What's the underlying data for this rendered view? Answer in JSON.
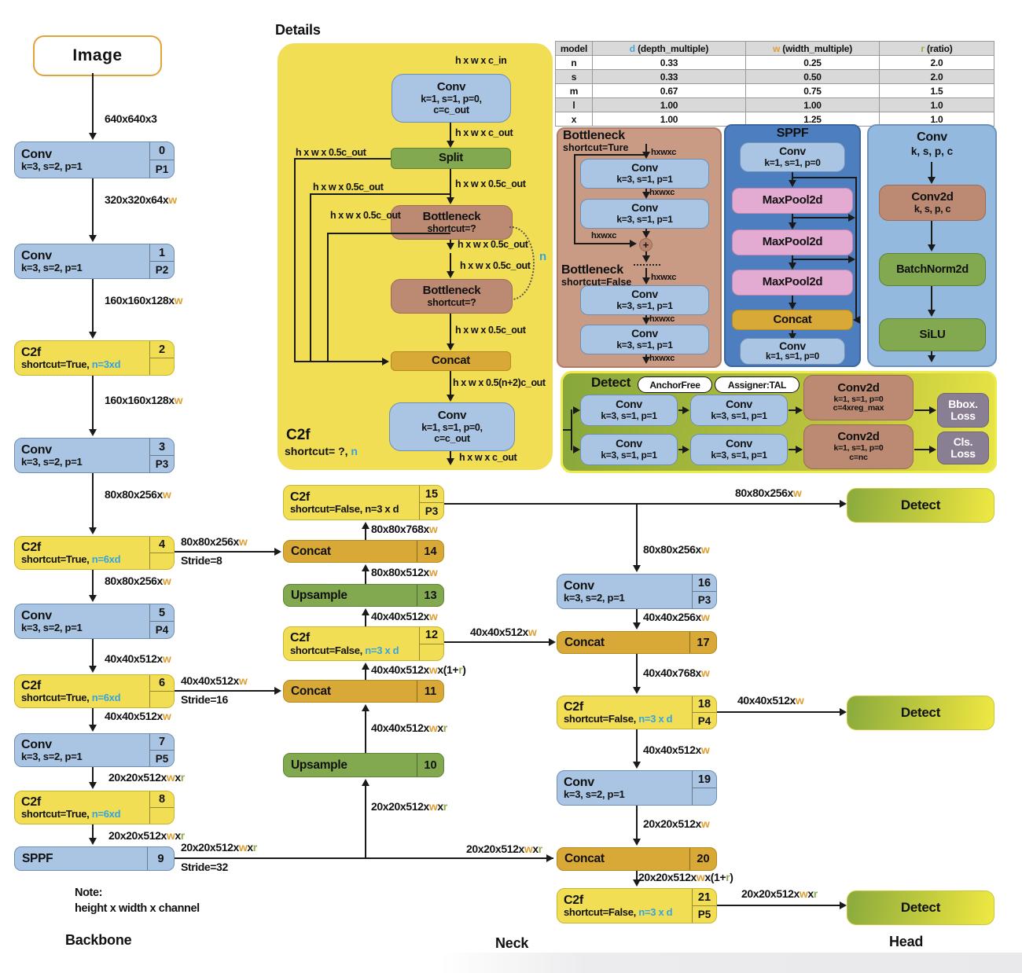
{
  "titles": {
    "details": "Details",
    "backbone": "Backbone",
    "neck": "Neck",
    "head": "Head",
    "image": "Image",
    "note_title": "Note:",
    "note_body": "height x width x channel"
  },
  "table": {
    "headers": {
      "model": "model",
      "d": [
        [
          "d",
          "d"
        ],
        [
          " (depth_multiple)"
        ]
      ],
      "w": [
        [
          "w",
          "w"
        ],
        [
          " (width_multiple)"
        ]
      ],
      "r": [
        [
          "r",
          "r"
        ],
        [
          " (ratio)"
        ]
      ]
    },
    "rows": [
      {
        "model": "n",
        "d": "0.33",
        "w": "0.25",
        "r": "2.0"
      },
      {
        "model": "s",
        "d": "0.33",
        "w": "0.50",
        "r": "2.0"
      },
      {
        "model": "m",
        "d": "0.67",
        "w": "0.75",
        "r": "1.5"
      },
      {
        "model": "l",
        "d": "1.00",
        "w": "1.00",
        "r": "1.0"
      },
      {
        "model": "x",
        "d": "1.00",
        "w": "1.25",
        "r": "1.0"
      }
    ]
  },
  "backbone": {
    "nodes": [
      {
        "title": "Conv",
        "sub": [
          [
            "k=3, s=2, p=1"
          ]
        ],
        "num": "0",
        "tag": "P1"
      },
      {
        "title": "Conv",
        "sub": [
          [
            "k=3, s=2, p=1"
          ]
        ],
        "num": "1",
        "tag": "P2"
      },
      {
        "title": "C2f",
        "sub": [
          [
            "shortcut=True, "
          ],
          [
            "n=3xd",
            "n"
          ]
        ],
        "num": "2",
        "tag": ""
      },
      {
        "title": "Conv",
        "sub": [
          [
            "k=3, s=2, p=1"
          ]
        ],
        "num": "3",
        "tag": "P3"
      },
      {
        "title": "C2f",
        "sub": [
          [
            "shortcut=True, "
          ],
          [
            "n=6xd",
            "n"
          ]
        ],
        "num": "4",
        "tag": ""
      },
      {
        "title": "Conv",
        "sub": [
          [
            "k=3, s=2, p=1"
          ]
        ],
        "num": "5",
        "tag": "P4"
      },
      {
        "title": "C2f",
        "sub": [
          [
            "shortcut=True, "
          ],
          [
            "n=6xd",
            "n"
          ]
        ],
        "num": "6",
        "tag": ""
      },
      {
        "title": "Conv",
        "sub": [
          [
            "k=3, s=2, p=1"
          ]
        ],
        "num": "7",
        "tag": "P5"
      },
      {
        "title": "C2f",
        "sub": [
          [
            "shortcut=True, "
          ],
          [
            "n=6xd",
            "n"
          ]
        ],
        "num": "8",
        "tag": ""
      },
      {
        "title": "SPPF",
        "num": "9"
      }
    ],
    "flows": [
      [
        [
          "640x640x3"
        ]
      ],
      [
        [
          "320x320x64x"
        ],
        [
          "w",
          "w"
        ]
      ],
      [
        [
          "160x160x128x"
        ],
        [
          "w",
          "w"
        ]
      ],
      [
        [
          "160x160x128x"
        ],
        [
          "w",
          "w"
        ]
      ],
      [
        [
          "80x80x256x"
        ],
        [
          "w",
          "w"
        ]
      ],
      [
        [
          "80x80x256x"
        ],
        [
          "w",
          "w"
        ]
      ],
      [
        [
          "40x40x512x"
        ],
        [
          "w",
          "w"
        ]
      ],
      [
        [
          "40x40x512x"
        ],
        [
          "w",
          "w"
        ]
      ],
      [
        [
          "20x20x512x"
        ],
        [
          "w",
          "w"
        ],
        [
          "x"
        ],
        [
          "r",
          "r"
        ]
      ],
      [
        [
          "20x20x512x"
        ],
        [
          "w",
          "w"
        ],
        [
          "x"
        ],
        [
          "r",
          "r"
        ]
      ]
    ],
    "strides": [
      {
        "dim": [
          [
            "80x80x256x"
          ],
          [
            "w",
            "w"
          ]
        ],
        "stride": "Stride=8"
      },
      {
        "dim": [
          [
            "40x40x512x"
          ],
          [
            "w",
            "w"
          ]
        ],
        "stride": "Stride=16"
      },
      {
        "dim": [
          [
            "20x20x512x"
          ],
          [
            "w",
            "w"
          ],
          [
            "x"
          ],
          [
            "r",
            "r"
          ]
        ],
        "stride": "Stride=32"
      }
    ]
  },
  "details": {
    "c2f_title": "C2f",
    "c2f_sub": [
      [
        "shortcut= ?, "
      ],
      [
        "n",
        "n"
      ]
    ],
    "n_label": "n",
    "conv_top": {
      "title": "Conv",
      "l1": "k=1, s=1, p=0,",
      "l2": "c=c_out"
    },
    "split": "Split",
    "bottleneck1": {
      "title": "Bottleneck",
      "sub": "shortcut=?"
    },
    "bottleneck2": {
      "title": "Bottleneck",
      "sub": "shortcut=?"
    },
    "concat": "Concat",
    "conv_bottom": {
      "title": "Conv",
      "l1": "k=1, s=1, p=0,",
      "l2": "c=c_out"
    },
    "labels": {
      "in": "h x w x c_in",
      "out_conv": "h x w x c_out",
      "half_a": "h x w x 0.5c_out",
      "half_b": "h x w x 0.5c_out",
      "half_c": "h x w x 0.5c_out",
      "half_d": "h x w x 0.5c_out",
      "half_e": "h x w x 0.5c_out",
      "half_f": "h x w x 0.5c_out",
      "half_g": "h x w x 0.5c_out",
      "concat_out": "h x w x 0.5(n+2)c_out",
      "final": "h x w x c_out"
    }
  },
  "bottleneck_panel": {
    "t1": "Bottleneck",
    "s1": "shortcut=Ture",
    "t2": "Bottleneck",
    "s2": "shortcut=False",
    "conv": {
      "title": "Conv",
      "sub": "k=3, s=1, p=1"
    },
    "hxwxc": "hxwxc",
    "plus": "+"
  },
  "sppf_panel": {
    "title": "SPPF",
    "conv1": {
      "title": "Conv",
      "sub": "k=1, s=1, p=0"
    },
    "mp": "MaxPool2d",
    "concat": "Concat",
    "conv2": {
      "title": "Conv",
      "sub": "k=1, s=1, p=0"
    }
  },
  "conv_panel": {
    "title": "Conv",
    "sub": "k, s, p, c",
    "conv2d": {
      "title": "Conv2d",
      "sub": "k, s, p, c"
    },
    "bn": "BatchNorm2d",
    "act": "SiLU"
  },
  "detect_panel": {
    "title": "Detect",
    "badge1": "AnchorFree",
    "badge2": "Assigner:TAL",
    "conv": {
      "title": "Conv",
      "sub": "k=3, s=1, p=1"
    },
    "conv2d_top": {
      "title": "Conv2d",
      "l1": "k=1, s=1, p=0",
      "l2": "c=4xreg_max"
    },
    "conv2d_bot": {
      "title": "Conv2d",
      "l1": "k=1, s=1, p=0",
      "l2": "c=nc"
    },
    "loss_top": {
      "l1": "Bbox.",
      "l2": "Loss"
    },
    "loss_bot": {
      "l1": "Cls.",
      "l2": "Loss"
    }
  },
  "neck": {
    "mid_nodes": [
      {
        "title": "C2f",
        "sub": [
          [
            "shortcut=False, n=3 x d"
          ]
        ],
        "num": "15",
        "tag": "P3"
      },
      {
        "title": "Concat",
        "num": "14"
      },
      {
        "title": "Upsample",
        "num": "13"
      },
      {
        "title": "C2f",
        "sub": [
          [
            "shortcut=False, "
          ],
          [
            "n=3 x d",
            "n"
          ]
        ],
        "num": "12",
        "tag": ""
      },
      {
        "title": "Concat",
        "num": "11"
      },
      {
        "title": "Upsample",
        "num": "10"
      }
    ],
    "right_nodes": [
      {
        "title": "Conv",
        "sub": [
          [
            "k=3, s=2, p=1"
          ]
        ],
        "num": "16",
        "tag": "P3"
      },
      {
        "title": "Concat",
        "num": "17"
      },
      {
        "title": "C2f",
        "sub": [
          [
            "shortcut=False, "
          ],
          [
            "n=3 x d",
            "n"
          ]
        ],
        "num": "18",
        "tag": "P4"
      },
      {
        "title": "Conv",
        "sub": [
          [
            "k=3, s=2, p=1"
          ]
        ],
        "num": "19",
        "tag": ""
      },
      {
        "title": "Concat",
        "num": "20"
      },
      {
        "title": "C2f",
        "sub": [
          [
            "shortcut=False, "
          ],
          [
            "n=3 x d",
            "n"
          ]
        ],
        "num": "21",
        "tag": "P5"
      }
    ],
    "mid_flows": {
      "f10_in": [
        [
          "20x20x512x"
        ],
        [
          "w",
          "w"
        ],
        [
          "x"
        ],
        [
          "r",
          "r"
        ]
      ],
      "f10_11": [
        [
          "40x40x512x"
        ],
        [
          "w",
          "w"
        ],
        [
          "x"
        ],
        [
          "r",
          "r"
        ]
      ],
      "f11_12": [
        [
          "40x40x512x"
        ],
        [
          "w",
          "w"
        ],
        [
          "x(1+"
        ],
        [
          "r",
          "r"
        ],
        [
          ")"
        ]
      ],
      "f12_13": [
        [
          "40x40x512x"
        ],
        [
          "w",
          "w"
        ]
      ],
      "f13_14": [
        [
          "80x80x512x"
        ],
        [
          "w",
          "w"
        ]
      ],
      "f14_15": [
        [
          "80x80x768x"
        ],
        [
          "w",
          "w"
        ]
      ]
    },
    "right_flows": {
      "top": [
        [
          "80x80x256x"
        ],
        [
          "w",
          "w"
        ]
      ],
      "drop16": [
        [
          "80x80x256x"
        ],
        [
          "w",
          "w"
        ]
      ],
      "f16_17": [
        [
          "40x40x256x"
        ],
        [
          "w",
          "w"
        ]
      ],
      "f17_18": [
        [
          "40x40x768x"
        ],
        [
          "w",
          "w"
        ]
      ],
      "f18_19": [
        [
          "40x40x512x"
        ],
        [
          "w",
          "w"
        ]
      ],
      "f19_20": [
        [
          "20x20x512x"
        ],
        [
          "w",
          "w"
        ]
      ],
      "f20_21": [
        [
          "20x20x512x"
        ],
        [
          "w",
          "w"
        ],
        [
          "x(1+"
        ],
        [
          "r",
          "r"
        ],
        [
          ")"
        ]
      ],
      "side12_17": [
        [
          "40x40x512x"
        ],
        [
          "w",
          "w"
        ]
      ],
      "sppf_20": [
        [
          "20x20x512x"
        ],
        [
          "w",
          "w"
        ],
        [
          "x"
        ],
        [
          "r",
          "r"
        ]
      ],
      "side18": [
        [
          "40x40x512x"
        ],
        [
          "w",
          "w"
        ]
      ],
      "side21": [
        [
          "20x20x512x"
        ],
        [
          "w",
          "w"
        ],
        [
          "x"
        ],
        [
          "r",
          "r"
        ]
      ]
    }
  },
  "head": {
    "d1": "Detect",
    "d2": "Detect",
    "d3": "Detect"
  }
}
